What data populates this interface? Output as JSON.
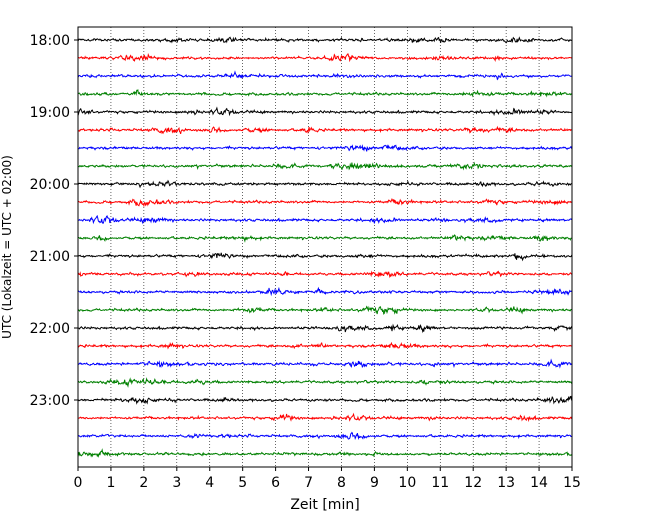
{
  "chart_data": {
    "type": "line",
    "title": "",
    "xlabel": "Zeit  [min]",
    "ylabel": "UTC (Lokalzeit = UTC + 02:00)",
    "xlim": [
      0,
      15
    ],
    "x_ticks": [
      "0",
      "1",
      "2",
      "3",
      "4",
      "5",
      "6",
      "7",
      "8",
      "9",
      "10",
      "11",
      "12",
      "13",
      "14",
      "15"
    ],
    "y_ticks": [
      "18:00",
      "19:00",
      "20:00",
      "21:00",
      "22:00",
      "23:00"
    ],
    "grid": "vertical dotted",
    "trace_interval_minutes": 15,
    "start_time": "18:00",
    "trace_colors": [
      "#000000",
      "#ff0000",
      "#0000ff",
      "#008000"
    ],
    "traces": [
      {
        "start": "18:00",
        "color": "#000000"
      },
      {
        "start": "18:15",
        "color": "#ff0000"
      },
      {
        "start": "18:30",
        "color": "#0000ff"
      },
      {
        "start": "18:45",
        "color": "#008000"
      },
      {
        "start": "19:00",
        "color": "#000000"
      },
      {
        "start": "19:15",
        "color": "#ff0000"
      },
      {
        "start": "19:30",
        "color": "#0000ff"
      },
      {
        "start": "19:45",
        "color": "#008000"
      },
      {
        "start": "20:00",
        "color": "#000000"
      },
      {
        "start": "20:15",
        "color": "#ff0000"
      },
      {
        "start": "20:30",
        "color": "#0000ff"
      },
      {
        "start": "20:45",
        "color": "#008000"
      },
      {
        "start": "21:00",
        "color": "#000000"
      },
      {
        "start": "21:15",
        "color": "#ff0000"
      },
      {
        "start": "21:30",
        "color": "#0000ff"
      },
      {
        "start": "21:45",
        "color": "#008000"
      },
      {
        "start": "22:00",
        "color": "#000000"
      },
      {
        "start": "22:15",
        "color": "#ff0000"
      },
      {
        "start": "22:30",
        "color": "#0000ff"
      },
      {
        "start": "22:45",
        "color": "#008000"
      },
      {
        "start": "23:00",
        "color": "#000000"
      },
      {
        "start": "23:15",
        "color": "#ff0000"
      },
      {
        "start": "23:30",
        "color": "#0000ff"
      },
      {
        "start": "23:45",
        "color": "#008000"
      }
    ]
  }
}
